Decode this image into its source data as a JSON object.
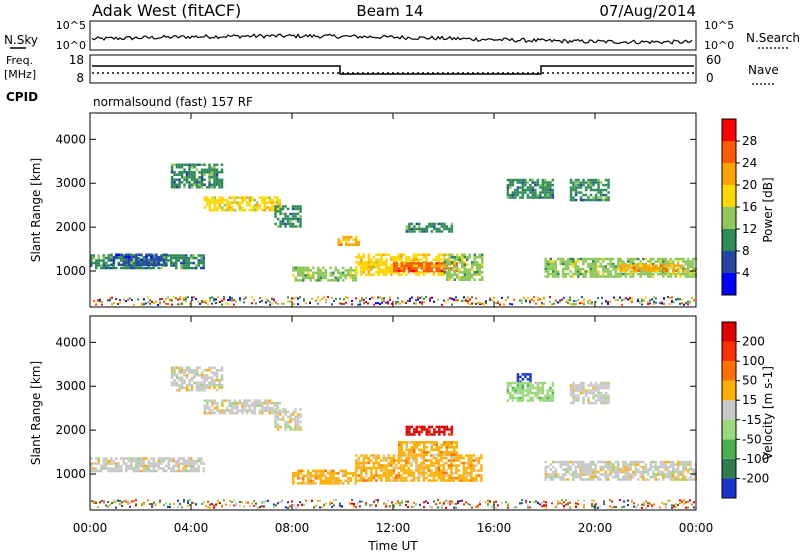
{
  "header": {
    "radar": "Adak West (fitACF)",
    "beam": "Beam 14",
    "date": "07/Aug/2014"
  },
  "noise_panel": {
    "left_label": "N.Sky",
    "right_label": "N.Search",
    "left_ticks": [
      "10^5",
      "10^0"
    ],
    "right_ticks": [
      "10^5",
      "10^0"
    ]
  },
  "freq_panel": {
    "left_label_1": "Freq.",
    "left_label_2": "[MHz]",
    "right_label": "Nave",
    "left_ticks": [
      "18",
      "8"
    ],
    "right_ticks": [
      "60",
      "0"
    ],
    "cpid_label": "CPID",
    "program": "normalsound (fast) 157 RF"
  },
  "chart_data": [
    {
      "type": "heatmap",
      "name": "power",
      "ylabel": "Slant Range [km]",
      "ylim": [
        180,
        4600
      ],
      "yticks": [
        "1000",
        "2000",
        "3000",
        "4000"
      ],
      "xlim": [
        0,
        24
      ],
      "colorbar": {
        "label": "Power [dB]",
        "ticks": [
          "4",
          "8",
          "12",
          "16",
          "20",
          "24",
          "28"
        ],
        "colors": [
          "#0000ff",
          "#2646a6",
          "#2e8b57",
          "#8fc85a",
          "#ffd700",
          "#ffa500",
          "#ff5a00",
          "#ff0000"
        ]
      },
      "regions": [
        {
          "t0": 0.0,
          "t1": 4.5,
          "r0": 1050,
          "r1": 1380,
          "level": 2
        },
        {
          "t0": 0.8,
          "t1": 3.0,
          "r0": 1150,
          "r1": 1400,
          "level": 1
        },
        {
          "t0": 3.2,
          "t1": 5.2,
          "r0": 2900,
          "r1": 3450,
          "level": 2
        },
        {
          "t0": 4.5,
          "t1": 7.5,
          "r0": 2400,
          "r1": 2700,
          "level": 4
        },
        {
          "t0": 7.3,
          "t1": 8.3,
          "r0": 2000,
          "r1": 2500,
          "level": 2
        },
        {
          "t0": 8.0,
          "t1": 10.5,
          "r0": 800,
          "r1": 1100,
          "level": 3
        },
        {
          "t0": 10.5,
          "t1": 14.0,
          "r0": 900,
          "r1": 1400,
          "level": 4
        },
        {
          "t0": 12.0,
          "t1": 14.5,
          "r0": 1000,
          "r1": 1200,
          "level": 6
        },
        {
          "t0": 14.0,
          "t1": 15.5,
          "r0": 800,
          "r1": 1400,
          "level": 3
        },
        {
          "t0": 12.5,
          "t1": 14.3,
          "r0": 1900,
          "r1": 2100,
          "level": 2
        },
        {
          "t0": 9.8,
          "t1": 10.6,
          "r0": 1600,
          "r1": 1800,
          "level": 5
        },
        {
          "t0": 16.5,
          "t1": 18.3,
          "r0": 2700,
          "r1": 3100,
          "level": 2
        },
        {
          "t0": 19.0,
          "t1": 20.5,
          "r0": 2600,
          "r1": 3100,
          "level": 2
        },
        {
          "t0": 18.0,
          "t1": 24.0,
          "r0": 900,
          "r1": 1300,
          "level": 3
        },
        {
          "t0": 21.0,
          "t1": 23.5,
          "r0": 1000,
          "r1": 1150,
          "level": 5
        }
      ]
    },
    {
      "type": "heatmap",
      "name": "velocity",
      "ylabel": "Slant Range [km]",
      "ylim": [
        180,
        4600
      ],
      "yticks": [
        "1000",
        "2000",
        "3000",
        "4000"
      ],
      "xlim": [
        0,
        24
      ],
      "xticks": [
        "00:00",
        "04:00",
        "08:00",
        "12:00",
        "16:00",
        "20:00",
        "00:00"
      ],
      "xlabel": "Time UT",
      "colorbar": {
        "label": "Velocity [m s-1]",
        "ticks": [
          "200",
          "100",
          "50",
          "15",
          "-15",
          "-50",
          "-100",
          "-200"
        ],
        "colors": [
          "#1a33cc",
          "#2e7d4f",
          "#4cb050",
          "#98d878",
          "#c8c8c8",
          "#ffb000",
          "#ff7000",
          "#ff3000",
          "#e00000"
        ]
      },
      "regions": [
        {
          "t0": 0.0,
          "t1": 4.5,
          "r0": 1050,
          "r1": 1380,
          "level": 4
        },
        {
          "t0": 3.2,
          "t1": 5.2,
          "r0": 2900,
          "r1": 3450,
          "level": 4
        },
        {
          "t0": 4.5,
          "t1": 7.5,
          "r0": 2400,
          "r1": 2700,
          "level": 4
        },
        {
          "t0": 7.3,
          "t1": 8.3,
          "r0": 2000,
          "r1": 2500,
          "level": 4
        },
        {
          "t0": 8.0,
          "t1": 10.5,
          "r0": 800,
          "r1": 1100,
          "level": 5
        },
        {
          "t0": 10.5,
          "t1": 15.5,
          "r0": 850,
          "r1": 1450,
          "level": 5
        },
        {
          "t0": 12.2,
          "t1": 14.5,
          "r0": 1450,
          "r1": 1750,
          "level": 5
        },
        {
          "t0": 12.5,
          "t1": 14.3,
          "r0": 1900,
          "r1": 2100,
          "level": 8
        },
        {
          "t0": 16.9,
          "t1": 17.4,
          "r0": 3100,
          "r1": 3300,
          "level": 0
        },
        {
          "t0": 16.5,
          "t1": 18.3,
          "r0": 2700,
          "r1": 3100,
          "level": 3
        },
        {
          "t0": 19.0,
          "t1": 20.5,
          "r0": 2600,
          "r1": 3100,
          "level": 4
        },
        {
          "t0": 18.0,
          "t1": 24.0,
          "r0": 900,
          "r1": 1300,
          "level": 4
        }
      ]
    }
  ]
}
